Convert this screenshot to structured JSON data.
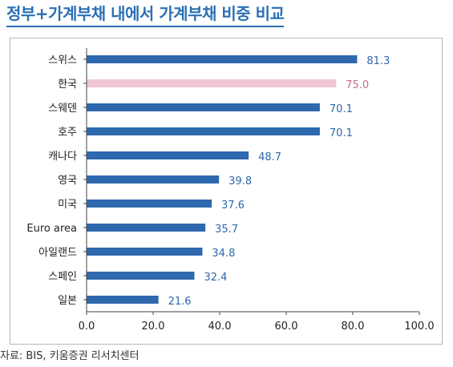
{
  "title": "정부+가계부채 내에서 가계부채 비중 비교",
  "source": "자료: BIS, 키움증권 리서치센터",
  "colors": {
    "bar": "#2e68ad",
    "highlight_bar": "#f0c6d2",
    "value_label": "#2e68ad",
    "highlight_label": "#c86a8c",
    "axis": "#444444"
  },
  "chart_data": {
    "type": "bar",
    "orientation": "horizontal",
    "title": "정부+가계부채 내에서 가계부채 비중 비교",
    "categories": [
      "스위스",
      "한국",
      "스웨덴",
      "호주",
      "캐나다",
      "영국",
      "미국",
      "Euro area",
      "아일랜드",
      "스페인",
      "일본"
    ],
    "values": [
      81.3,
      75.0,
      70.1,
      70.1,
      48.7,
      39.8,
      37.6,
      35.7,
      34.8,
      32.4,
      21.6
    ],
    "value_labels": [
      "81.3",
      "75.0",
      "70.1",
      "70.1",
      "48.7",
      "39.8",
      "37.6",
      "35.7",
      "34.8",
      "32.4",
      "21.6"
    ],
    "highlight": "한국",
    "xlim": [
      0,
      100
    ],
    "xticks": [
      0,
      20,
      40,
      60,
      80,
      100
    ],
    "xtick_labels": [
      "0.0",
      "20.0",
      "40.0",
      "60.0",
      "80.0",
      "100.0"
    ],
    "xlabel": "",
    "ylabel": "",
    "grid": false,
    "legend": "none"
  }
}
